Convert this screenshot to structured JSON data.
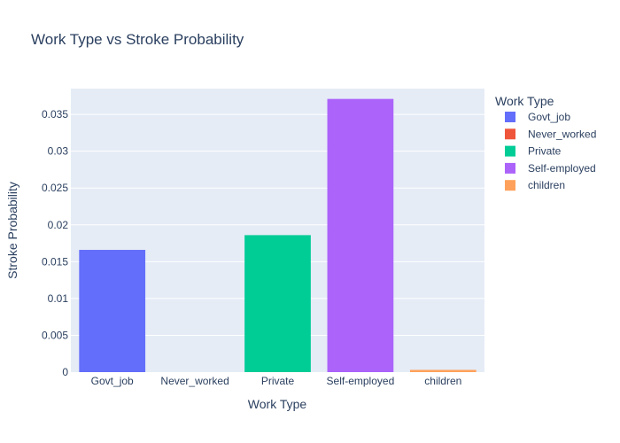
{
  "chart_data": {
    "type": "bar",
    "title": "Work Type vs Stroke Probability",
    "xlabel": "Work Type",
    "ylabel": "Stroke Probability",
    "categories": [
      "Govt_job",
      "Never_worked",
      "Private",
      "Self-employed",
      "children"
    ],
    "values": [
      0.0166,
      0.0,
      0.0186,
      0.0371,
      0.0003
    ],
    "colors": [
      "#636efa",
      "#EF553B",
      "#00cc96",
      "#ab63fa",
      "#FFA15A"
    ],
    "ylim": [
      0,
      0.0385
    ],
    "yticks": [
      0,
      0.005,
      0.01,
      0.015,
      0.02,
      0.025,
      0.03,
      0.035
    ],
    "ytick_labels": [
      "0",
      "0.005",
      "0.01",
      "0.015",
      "0.02",
      "0.025",
      "0.03",
      "0.035"
    ],
    "grid": true,
    "legend": {
      "title": "Work Type",
      "placement": "right",
      "items": [
        "Govt_job",
        "Never_worked",
        "Private",
        "Self-employed",
        "children"
      ]
    },
    "plot_bg": "#e5ecf6"
  }
}
